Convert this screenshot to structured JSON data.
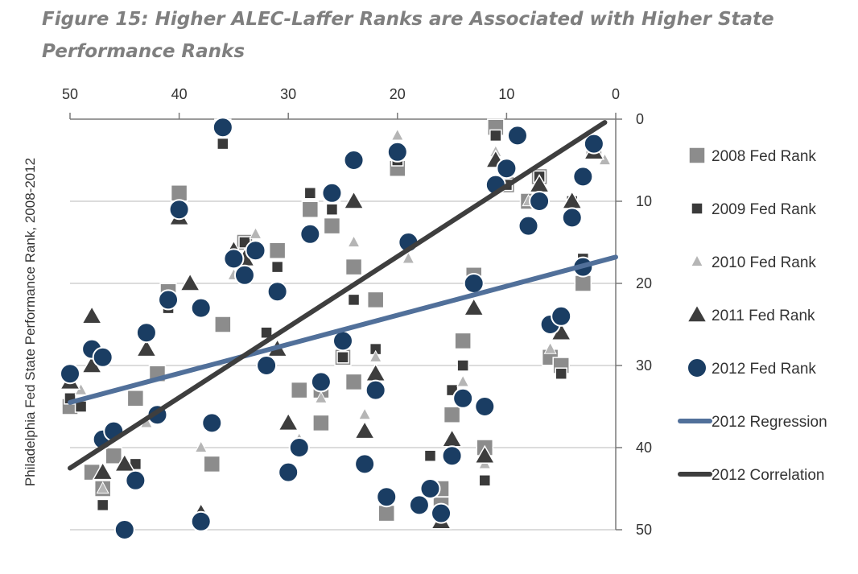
{
  "chart_data": {
    "type": "scatter",
    "title": "Figure 15: Higher ALEC-Laffer Ranks are Associated with Higher State Performance Ranks",
    "xlabel": "",
    "ylabel": "Philadelphia Fed State Performance Rank, 2008-2012",
    "x_ticks": [
      "50",
      "40",
      "30",
      "20",
      "10",
      "0"
    ],
    "y_ticks": [
      "0",
      "10",
      "20",
      "30",
      "40",
      "50"
    ],
    "xlim": [
      50,
      0
    ],
    "ylim": [
      50,
      0
    ],
    "x_reversed": true,
    "y_reversed": true,
    "grid": "horizontal",
    "legend_position": "right",
    "colors": {
      "fed2008": "#8c8c8c",
      "fed2009": "#3a3a3a",
      "fed2010": "#b5b5b5",
      "fed2011": "#3d3d3d",
      "fed2012": "#1a3d63",
      "regression": "#51709a",
      "correlation": "#3e3e3e"
    },
    "series": [
      {
        "name": "2008 Fed Rank",
        "marker": "square",
        "color": "#8c8c8c",
        "points": [
          [
            36,
            1
          ],
          [
            11,
            1
          ],
          [
            20,
            6
          ],
          [
            2,
            4
          ],
          [
            7,
            7
          ],
          [
            10,
            8
          ],
          [
            40,
            9
          ],
          [
            28,
            11
          ],
          [
            26,
            13
          ],
          [
            8,
            10
          ],
          [
            24,
            18
          ],
          [
            34,
            15
          ],
          [
            31,
            16
          ],
          [
            26,
            9
          ],
          [
            41,
            21
          ],
          [
            22,
            22
          ],
          [
            3,
            20
          ],
          [
            13,
            19
          ],
          [
            36,
            25
          ],
          [
            14,
            27
          ],
          [
            25,
            29
          ],
          [
            6,
            29
          ],
          [
            5,
            30
          ],
          [
            42,
            31
          ],
          [
            44,
            34
          ],
          [
            27,
            33
          ],
          [
            29,
            33
          ],
          [
            24,
            32
          ],
          [
            27,
            37
          ],
          [
            15,
            36
          ],
          [
            37,
            42
          ],
          [
            12,
            40
          ],
          [
            21,
            48
          ],
          [
            16,
            47
          ],
          [
            46,
            41
          ],
          [
            48,
            43
          ],
          [
            50,
            35
          ],
          [
            16,
            45
          ],
          [
            47,
            45
          ]
        ]
      },
      {
        "name": "2009  Fed Rank",
        "marker": "square-small",
        "color": "#3a3a3a",
        "points": [
          [
            36,
            3
          ],
          [
            11,
            2
          ],
          [
            20,
            5
          ],
          [
            28,
            9
          ],
          [
            26,
            11
          ],
          [
            10,
            8
          ],
          [
            7,
            7
          ],
          [
            4,
            10
          ],
          [
            3,
            17
          ],
          [
            31,
            18
          ],
          [
            34,
            15
          ],
          [
            24,
            22
          ],
          [
            22,
            28
          ],
          [
            32,
            26
          ],
          [
            41,
            23
          ],
          [
            25,
            29
          ],
          [
            14,
            30
          ],
          [
            5,
            31
          ],
          [
            50,
            34
          ],
          [
            49,
            35
          ],
          [
            15,
            33
          ],
          [
            17,
            41
          ],
          [
            12,
            44
          ],
          [
            44,
            42
          ],
          [
            47,
            47
          ]
        ]
      },
      {
        "name": "2010 Fed Rank",
        "marker": "triangle-small",
        "color": "#b5b5b5",
        "points": [
          [
            20,
            2
          ],
          [
            11,
            4
          ],
          [
            24,
            15
          ],
          [
            1,
            5
          ],
          [
            8,
            10
          ],
          [
            19,
            17
          ],
          [
            28,
            14
          ],
          [
            33,
            14
          ],
          [
            35,
            19
          ],
          [
            22,
            29
          ],
          [
            6,
            28
          ],
          [
            14,
            32
          ],
          [
            27,
            34
          ],
          [
            23,
            36
          ],
          [
            43,
            37
          ],
          [
            29,
            39
          ],
          [
            38,
            40
          ],
          [
            12,
            42
          ],
          [
            47,
            45
          ],
          [
            49,
            33
          ]
        ]
      },
      {
        "name": "2011 Fed Rank",
        "marker": "triangle",
        "color": "#3d3d3d",
        "points": [
          [
            40,
            12
          ],
          [
            24,
            10
          ],
          [
            11,
            5
          ],
          [
            7,
            8
          ],
          [
            4,
            10
          ],
          [
            2,
            4
          ],
          [
            48,
            24
          ],
          [
            39,
            20
          ],
          [
            34,
            17
          ],
          [
            35,
            16
          ],
          [
            43,
            28
          ],
          [
            31,
            28
          ],
          [
            22,
            31
          ],
          [
            13,
            23
          ],
          [
            5,
            26
          ],
          [
            48,
            30
          ],
          [
            50,
            32
          ],
          [
            30,
            37
          ],
          [
            23,
            38
          ],
          [
            15,
            39
          ],
          [
            12,
            41
          ],
          [
            47,
            43
          ],
          [
            45,
            42
          ],
          [
            38,
            48
          ],
          [
            16,
            49
          ]
        ]
      },
      {
        "name": "2012 Fed Rank",
        "marker": "circle",
        "color": "#1a3d63",
        "points": [
          [
            36,
            1
          ],
          [
            20,
            4
          ],
          [
            24,
            5
          ],
          [
            9,
            2
          ],
          [
            2,
            3
          ],
          [
            10,
            6
          ],
          [
            11,
            8
          ],
          [
            7,
            10
          ],
          [
            3,
            7
          ],
          [
            4,
            12
          ],
          [
            8,
            13
          ],
          [
            40,
            11
          ],
          [
            26,
            9
          ],
          [
            28,
            14
          ],
          [
            19,
            15
          ],
          [
            35,
            17
          ],
          [
            33,
            16
          ],
          [
            34,
            19
          ],
          [
            31,
            21
          ],
          [
            41,
            22
          ],
          [
            38,
            23
          ],
          [
            13,
            20
          ],
          [
            3,
            18
          ],
          [
            43,
            26
          ],
          [
            25,
            27
          ],
          [
            6,
            25
          ],
          [
            5,
            24
          ],
          [
            48,
            28
          ],
          [
            47,
            29
          ],
          [
            50,
            31
          ],
          [
            32,
            30
          ],
          [
            27,
            32
          ],
          [
            22,
            33
          ],
          [
            14,
            34
          ],
          [
            12,
            35
          ],
          [
            42,
            36
          ],
          [
            37,
            37
          ],
          [
            29,
            40
          ],
          [
            30,
            43
          ],
          [
            23,
            42
          ],
          [
            15,
            41
          ],
          [
            47,
            39
          ],
          [
            46,
            38
          ],
          [
            44,
            44
          ],
          [
            21,
            46
          ],
          [
            18,
            47
          ],
          [
            17,
            45
          ],
          [
            16,
            48
          ],
          [
            45,
            50
          ],
          [
            38,
            49
          ]
        ]
      }
    ],
    "lines": [
      {
        "name": "2012 Regression",
        "color": "#51709a",
        "from": [
          50,
          34.5
        ],
        "to": [
          0,
          16.8
        ]
      },
      {
        "name": "2012 Correlation",
        "color": "#3e3e3e",
        "from": [
          50,
          42.5
        ],
        "to": [
          1,
          0.4
        ]
      }
    ]
  }
}
